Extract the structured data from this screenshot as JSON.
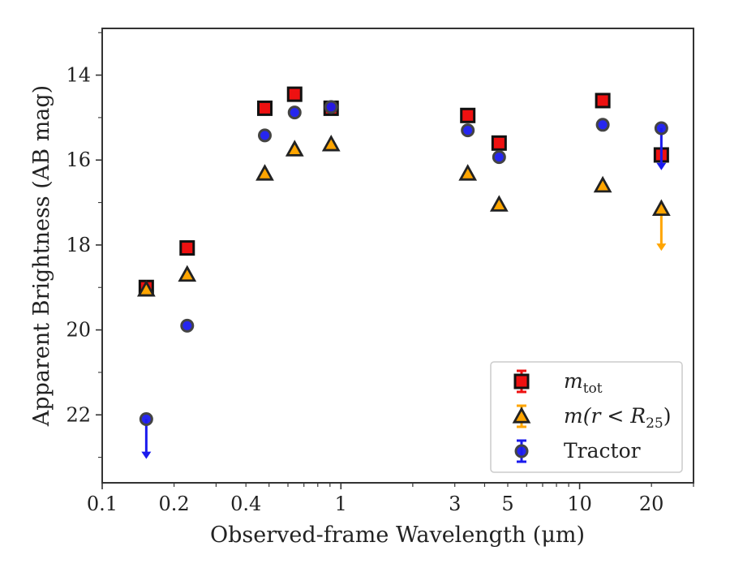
{
  "chart_data": {
    "type": "scatter",
    "xlabel": "Observed-frame Wavelength (μm)",
    "ylabel": "Apparent Brightness (AB mag)",
    "xscale": "log",
    "xlim": [
      0.1,
      30
    ],
    "ylim": [
      23.6,
      12.9
    ],
    "y_inverted": true,
    "x_ticks": [
      0.1,
      0.2,
      0.4,
      1,
      3,
      5,
      10,
      20
    ],
    "x_tick_labels": [
      "0.1",
      "0.2",
      "0.4",
      "1",
      "3",
      "5",
      "10",
      "20"
    ],
    "y_ticks": [
      14,
      16,
      18,
      20,
      22
    ],
    "y_tick_labels": [
      "14",
      "16",
      "18",
      "20",
      "22"
    ],
    "grid": false,
    "legend_position": "lower-right",
    "series": [
      {
        "key": "m_tot",
        "marker": "square",
        "color": "#ee1111",
        "edge_color": "#111111",
        "points": [
          {
            "x": 0.153,
            "y": 19.0
          },
          {
            "x": 0.227,
            "y": 18.07
          },
          {
            "x": 0.48,
            "y": 14.78
          },
          {
            "x": 0.64,
            "y": 14.45
          },
          {
            "x": 0.91,
            "y": 14.78
          },
          {
            "x": 3.4,
            "y": 14.95
          },
          {
            "x": 4.6,
            "y": 15.6
          },
          {
            "x": 12.5,
            "y": 14.6
          },
          {
            "x": 22,
            "y": 15.88,
            "upper_limit": false
          }
        ]
      },
      {
        "key": "m_r25",
        "marker": "triangle",
        "color": "#ffa500",
        "edge_color": "#222222",
        "points": [
          {
            "x": 0.153,
            "y": 19.05
          },
          {
            "x": 0.227,
            "y": 18.7
          },
          {
            "x": 0.48,
            "y": 16.32
          },
          {
            "x": 0.64,
            "y": 15.75
          },
          {
            "x": 0.91,
            "y": 15.63
          },
          {
            "x": 3.4,
            "y": 16.32
          },
          {
            "x": 4.6,
            "y": 17.05
          },
          {
            "x": 12.5,
            "y": 16.6
          },
          {
            "x": 22,
            "y": 17.15,
            "upper_limit": true,
            "limit_to": 18.1
          }
        ]
      },
      {
        "key": "tractor",
        "marker": "circle",
        "color": "#1a1aee",
        "edge_color": "#444444",
        "points": [
          {
            "x": 0.153,
            "y": 22.1,
            "upper_limit": true,
            "limit_to": 23.0
          },
          {
            "x": 0.227,
            "y": 19.9
          },
          {
            "x": 0.48,
            "y": 15.42
          },
          {
            "x": 0.64,
            "y": 14.88
          },
          {
            "x": 0.91,
            "y": 14.75
          },
          {
            "x": 3.4,
            "y": 15.3
          },
          {
            "x": 4.6,
            "y": 15.93
          },
          {
            "x": 12.5,
            "y": 15.17
          },
          {
            "x": 22,
            "y": 15.25,
            "upper_limit": true,
            "limit_to": 16.2
          }
        ]
      }
    ],
    "legend": [
      {
        "key": "m_tot",
        "label_main": "m",
        "label_sub": "tot",
        "label_plain": ""
      },
      {
        "key": "m_r25",
        "label_main": "m(r < R",
        "label_sub": "25",
        "label_plain": ")"
      },
      {
        "key": "tractor",
        "label_main": "",
        "label_sub": "",
        "label_plain": "Tractor"
      }
    ]
  }
}
